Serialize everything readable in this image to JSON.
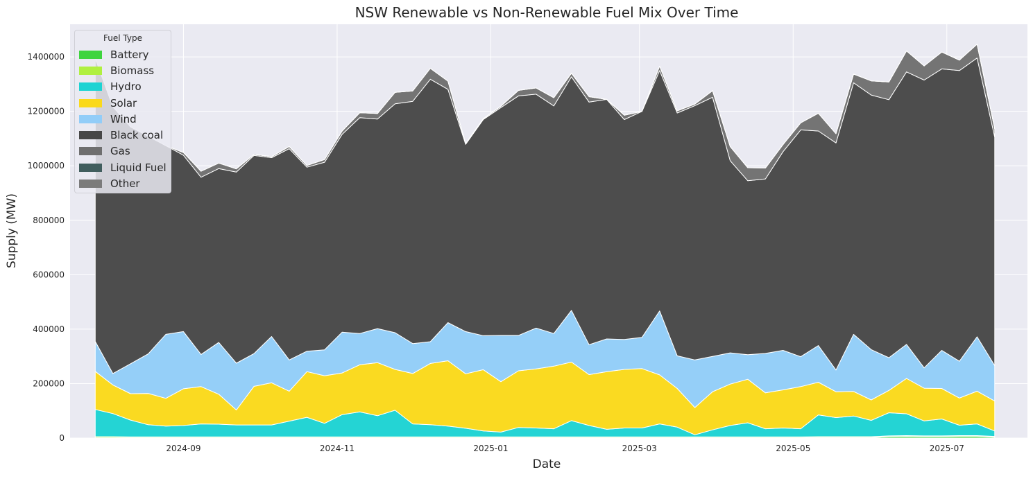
{
  "chart_data": {
    "type": "area",
    "stacked": true,
    "title": "NSW Renewable vs Non-Renewable Fuel Mix Over Time",
    "xlabel": "Date",
    "ylabel": "Supply (MW)",
    "grid": true,
    "legend": {
      "title": "Fuel Type",
      "placement": "top-left"
    },
    "xlim": [
      "2024-07-18",
      "2025-08-02"
    ],
    "ylim": [
      0,
      1520000
    ],
    "x_ticks": [
      "2024-09",
      "2024-11",
      "2025-01",
      "2025-03",
      "2025-05",
      "2025-07"
    ],
    "y_ticks": [
      0,
      200000,
      400000,
      600000,
      800000,
      1000000,
      1200000,
      1400000
    ],
    "x": [
      "2024-07-28",
      "2024-08-04",
      "2024-08-11",
      "2024-08-18",
      "2024-08-25",
      "2024-09-01",
      "2024-09-08",
      "2024-09-15",
      "2024-09-22",
      "2024-09-29",
      "2024-10-06",
      "2024-10-13",
      "2024-10-20",
      "2024-10-27",
      "2024-11-03",
      "2024-11-10",
      "2024-11-17",
      "2024-11-24",
      "2024-12-01",
      "2024-12-08",
      "2024-12-15",
      "2024-12-22",
      "2024-12-29",
      "2025-01-05",
      "2025-01-12",
      "2025-01-19",
      "2025-01-26",
      "2025-02-02",
      "2025-02-09",
      "2025-02-16",
      "2025-02-23",
      "2025-03-02",
      "2025-03-09",
      "2025-03-16",
      "2025-03-23",
      "2025-03-30",
      "2025-04-06",
      "2025-04-13",
      "2025-04-20",
      "2025-04-27",
      "2025-05-04",
      "2025-05-11",
      "2025-05-18",
      "2025-05-25",
      "2025-06-01",
      "2025-06-08",
      "2025-06-15",
      "2025-06-22",
      "2025-06-29",
      "2025-07-06",
      "2025-07-13",
      "2025-07-20"
    ],
    "series": [
      {
        "name": "Battery",
        "color": "#3fd43f",
        "values": [
          1000,
          1000,
          1000,
          1000,
          1000,
          1000,
          1000,
          1000,
          1000,
          1000,
          1000,
          1000,
          1000,
          1000,
          1000,
          1000,
          1000,
          1000,
          1000,
          1000,
          1000,
          1000,
          1000,
          1000,
          1000,
          1000,
          1000,
          1000,
          1000,
          1000,
          1000,
          1000,
          1000,
          1000,
          1000,
          1000,
          1000,
          1000,
          1000,
          1000,
          1000,
          2000,
          2000,
          2000,
          2000,
          5000,
          6000,
          5000,
          5000,
          6000,
          6000,
          3000
        ]
      },
      {
        "name": "Biomass",
        "color": "#b0f040",
        "values": [
          4000,
          4000,
          3000,
          3000,
          3000,
          3000,
          3000,
          3000,
          3000,
          3000,
          3000,
          3000,
          3000,
          3000,
          3000,
          3000,
          3000,
          3000,
          3000,
          3000,
          3000,
          3000,
          3000,
          3000,
          3000,
          3000,
          3000,
          3000,
          3000,
          3000,
          3000,
          3000,
          3000,
          3000,
          3000,
          3000,
          3000,
          3000,
          3000,
          3000,
          3000,
          3000,
          3000,
          3000,
          3000,
          3000,
          3000,
          3000,
          3000,
          3000,
          3000,
          3000
        ]
      },
      {
        "name": "Hydro",
        "color": "#1dd3d3",
        "values": [
          100000,
          85000,
          62000,
          45000,
          40000,
          42000,
          48000,
          47000,
          44000,
          44000,
          44000,
          58000,
          72000,
          50000,
          82000,
          92000,
          78000,
          98000,
          48000,
          45000,
          40000,
          32000,
          22000,
          18000,
          35000,
          33000,
          30000,
          60000,
          42000,
          28000,
          33000,
          33000,
          48000,
          36000,
          8000,
          26000,
          42000,
          52000,
          30000,
          33000,
          30000,
          80000,
          70000,
          76000,
          60000,
          85000,
          80000,
          55000,
          62000,
          38000,
          43000,
          20000
        ]
      },
      {
        "name": "Solar",
        "color": "#fad91a",
        "values": [
          140000,
          105000,
          97000,
          115000,
          102000,
          135000,
          137000,
          110000,
          55000,
          142000,
          155000,
          110000,
          168000,
          175000,
          153000,
          173000,
          195000,
          150000,
          185000,
          225000,
          240000,
          200000,
          225000,
          185000,
          208000,
          217000,
          230000,
          215000,
          187000,
          212000,
          215000,
          218000,
          180000,
          142000,
          100000,
          140000,
          152000,
          160000,
          132000,
          140000,
          155000,
          120000,
          95000,
          90000,
          75000,
          82000,
          130000,
          120000,
          112000,
          100000,
          120000,
          110000
        ]
      },
      {
        "name": "Wind",
        "color": "#92cdf8",
        "values": [
          110000,
          42000,
          110000,
          145000,
          235000,
          210000,
          118000,
          190000,
          172000,
          120000,
          170000,
          115000,
          75000,
          95000,
          150000,
          115000,
          125000,
          135000,
          110000,
          80000,
          140000,
          155000,
          125000,
          170000,
          130000,
          150000,
          120000,
          190000,
          110000,
          120000,
          110000,
          115000,
          235000,
          120000,
          175000,
          130000,
          115000,
          90000,
          145000,
          145000,
          110000,
          135000,
          80000,
          210000,
          185000,
          120000,
          125000,
          75000,
          140000,
          135000,
          200000,
          130000
        ]
      },
      {
        "name": "Black coal",
        "color": "#474747",
        "values": [
          1040000,
          980000,
          870000,
          800000,
          693000,
          648000,
          651000,
          639000,
          702000,
          728000,
          657000,
          776000,
          676000,
          689000,
          727000,
          793000,
          770000,
          841000,
          890000,
          964000,
          857000,
          688000,
          794000,
          837000,
          880000,
          859000,
          836000,
          858000,
          891000,
          880000,
          808000,
          830000,
          883000,
          892000,
          934000,
          952000,
          706000,
          639000,
          641000,
          730000,
          833000,
          788000,
          834000,
          924000,
          935000,
          948000,
          1001000,
          1057000,
          1034000,
          1068000,
          1024000,
          840000
        ]
      },
      {
        "name": "Gas",
        "color": "#6f6f6f",
        "values": [
          0,
          0,
          0,
          0,
          0,
          10000,
          22000,
          20000,
          12000,
          4000,
          4000,
          8000,
          6000,
          10000,
          12000,
          18000,
          20000,
          42000,
          38000,
          40000,
          30000,
          3000,
          3000,
          5000,
          20000,
          23000,
          30000,
          13000,
          20000,
          0,
          16000,
          0,
          16000,
          8000,
          6000,
          24000,
          52000,
          48000,
          40000,
          26000,
          26000,
          65000,
          34000,
          32000,
          52000,
          65000,
          77000,
          52000,
          62000,
          38000,
          51000,
          30000
        ]
      },
      {
        "name": "Liquid Fuel",
        "color": "#415e5e",
        "values": [
          0,
          0,
          0,
          0,
          0,
          0,
          0,
          0,
          0,
          0,
          0,
          0,
          0,
          0,
          0,
          0,
          0,
          0,
          0,
          0,
          0,
          0,
          0,
          0,
          0,
          0,
          0,
          0,
          0,
          0,
          0,
          0,
          0,
          0,
          0,
          0,
          0,
          0,
          0,
          0,
          0,
          0,
          0,
          0,
          0,
          0,
          0,
          0,
          0,
          0,
          0,
          0
        ]
      },
      {
        "name": "Other",
        "color": "#7b7b7b",
        "values": [
          0,
          0,
          0,
          0,
          0,
          0,
          0,
          0,
          0,
          0,
          0,
          0,
          0,
          0,
          0,
          0,
          0,
          0,
          0,
          0,
          0,
          0,
          0,
          0,
          0,
          0,
          0,
          0,
          0,
          0,
          0,
          0,
          0,
          0,
          0,
          0,
          0,
          0,
          0,
          0,
          0,
          0,
          0,
          0,
          0,
          0,
          0,
          0,
          0,
          0,
          0,
          0
        ]
      }
    ]
  }
}
